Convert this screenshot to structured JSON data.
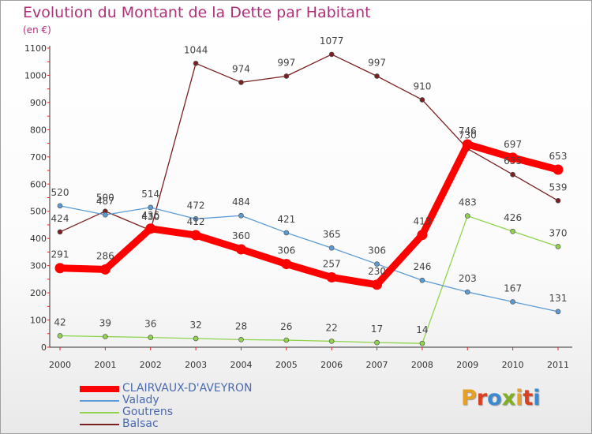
{
  "title": "Evolution du Montant de la Dette par Habitant",
  "subtitle": "(en €)",
  "logo": {
    "letters": [
      "P",
      "r",
      "o",
      "x",
      "i",
      "t",
      "i"
    ],
    "colors": [
      "#e8a020",
      "#d84020",
      "#3a8ad0",
      "#80b020",
      "#e8a020",
      "#d84020",
      "#3a8ad0"
    ]
  },
  "chart_data": {
    "type": "line",
    "title": "Evolution du Montant de la Dette par Habitant",
    "subtitle": "(en €)",
    "x": [
      "2000",
      "2001",
      "2002",
      "2003",
      "2004",
      "2005",
      "2006",
      "2007",
      "2008",
      "2009",
      "2010",
      "2011"
    ],
    "ylim": [
      0,
      1100
    ],
    "yticks": [
      0,
      100,
      200,
      300,
      400,
      500,
      600,
      700,
      800,
      900,
      1000,
      1100
    ],
    "grid": false,
    "legend_position": "bottom-left",
    "series": [
      {
        "name": "CLAIRVAUX-D'AVEYRON",
        "color": "#ff0000",
        "values": [
          291,
          286,
          436,
          412,
          360,
          306,
          257,
          230,
          413,
          746,
          697,
          653
        ]
      },
      {
        "name": "Valady",
        "color": "#5b9bd5",
        "values": [
          520,
          487,
          514,
          472,
          484,
          421,
          365,
          306,
          246,
          203,
          167,
          131
        ]
      },
      {
        "name": "Goutrens",
        "color": "#8fd44c",
        "values": [
          42,
          39,
          36,
          32,
          28,
          26,
          22,
          17,
          14,
          483,
          426,
          370
        ]
      },
      {
        "name": "Balsac",
        "color": "#7a2020",
        "values": [
          424,
          500,
          430,
          1044,
          974,
          997,
          1077,
          997,
          910,
          730,
          635,
          539
        ]
      }
    ]
  }
}
